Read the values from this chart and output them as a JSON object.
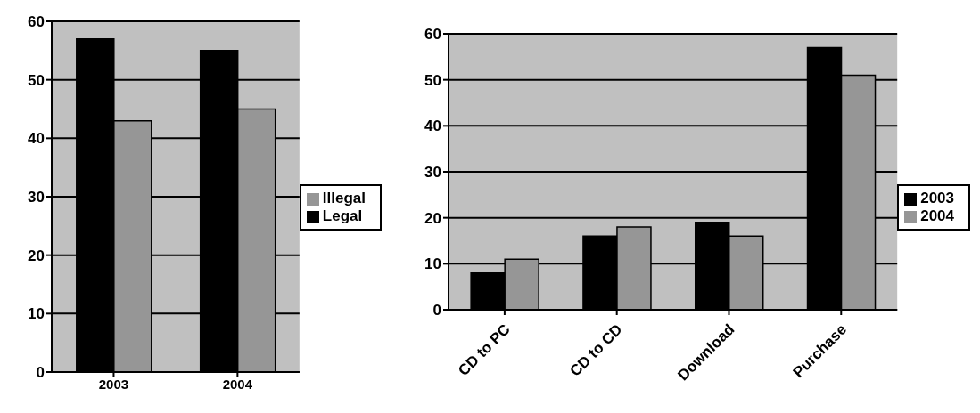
{
  "chart_data": [
    {
      "type": "bar",
      "categories": [
        "2003",
        "2004"
      ],
      "series": [
        {
          "name": "Legal",
          "color": "#000000",
          "values": [
            57,
            55
          ]
        },
        {
          "name": "Illegal",
          "color": "#969696",
          "values": [
            43,
            45
          ]
        }
      ],
      "ylim": [
        0,
        60
      ],
      "yticks": [
        0,
        10,
        20,
        30,
        40,
        50,
        60
      ],
      "grid": "y",
      "legend": "right"
    },
    {
      "type": "bar",
      "categories": [
        "CD to PC",
        "CD to CD",
        "Download",
        "Purchase"
      ],
      "series": [
        {
          "name": "2003",
          "color": "#000000",
          "values": [
            8,
            16,
            19,
            57
          ]
        },
        {
          "name": "2004",
          "color": "#969696",
          "values": [
            11,
            18,
            16,
            51
          ]
        }
      ],
      "ylim": [
        0,
        60
      ],
      "yticks": [
        0,
        10,
        20,
        30,
        40,
        50,
        60
      ],
      "grid": "y",
      "legend": "right"
    }
  ]
}
